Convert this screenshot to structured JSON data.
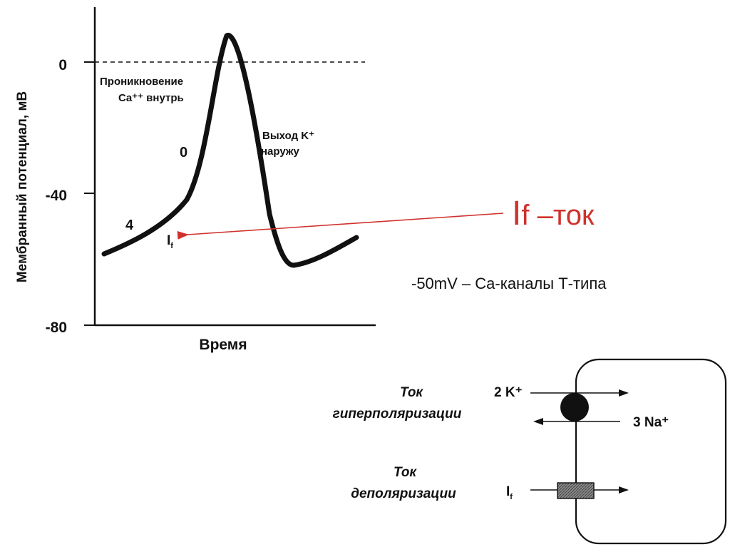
{
  "chart": {
    "ylabel": "Мембранный потенциал, мВ",
    "xlabel": "Время",
    "y_ticks": [
      "0",
      "-40",
      "-80"
    ],
    "phase_labels": {
      "phase0": "0",
      "phase4": "4"
    },
    "annotations": {
      "ca_line1": "Проникновение",
      "ca_line2": "Ca⁺⁺ внутрь",
      "k_line1": "Выход K⁺",
      "k_line2": "наружу",
      "if_label": "I",
      "if_sub": "f"
    }
  },
  "callout": {
    "if_big": "I",
    "if_rest": "f –ток",
    "ca_channels": "-50mV – Ca-каналы Т-типа",
    "arrow_color": "#d0312d"
  },
  "cell_diagram": {
    "hyper_line1": "Ток",
    "hyper_line2": "гиперполяризации",
    "depol_line1": "Ток",
    "depol_line2": "деполяризации",
    "k_ion": "2 K⁺",
    "na_ion": "3 Na⁺",
    "if_label": "I",
    "if_sub": "f"
  }
}
